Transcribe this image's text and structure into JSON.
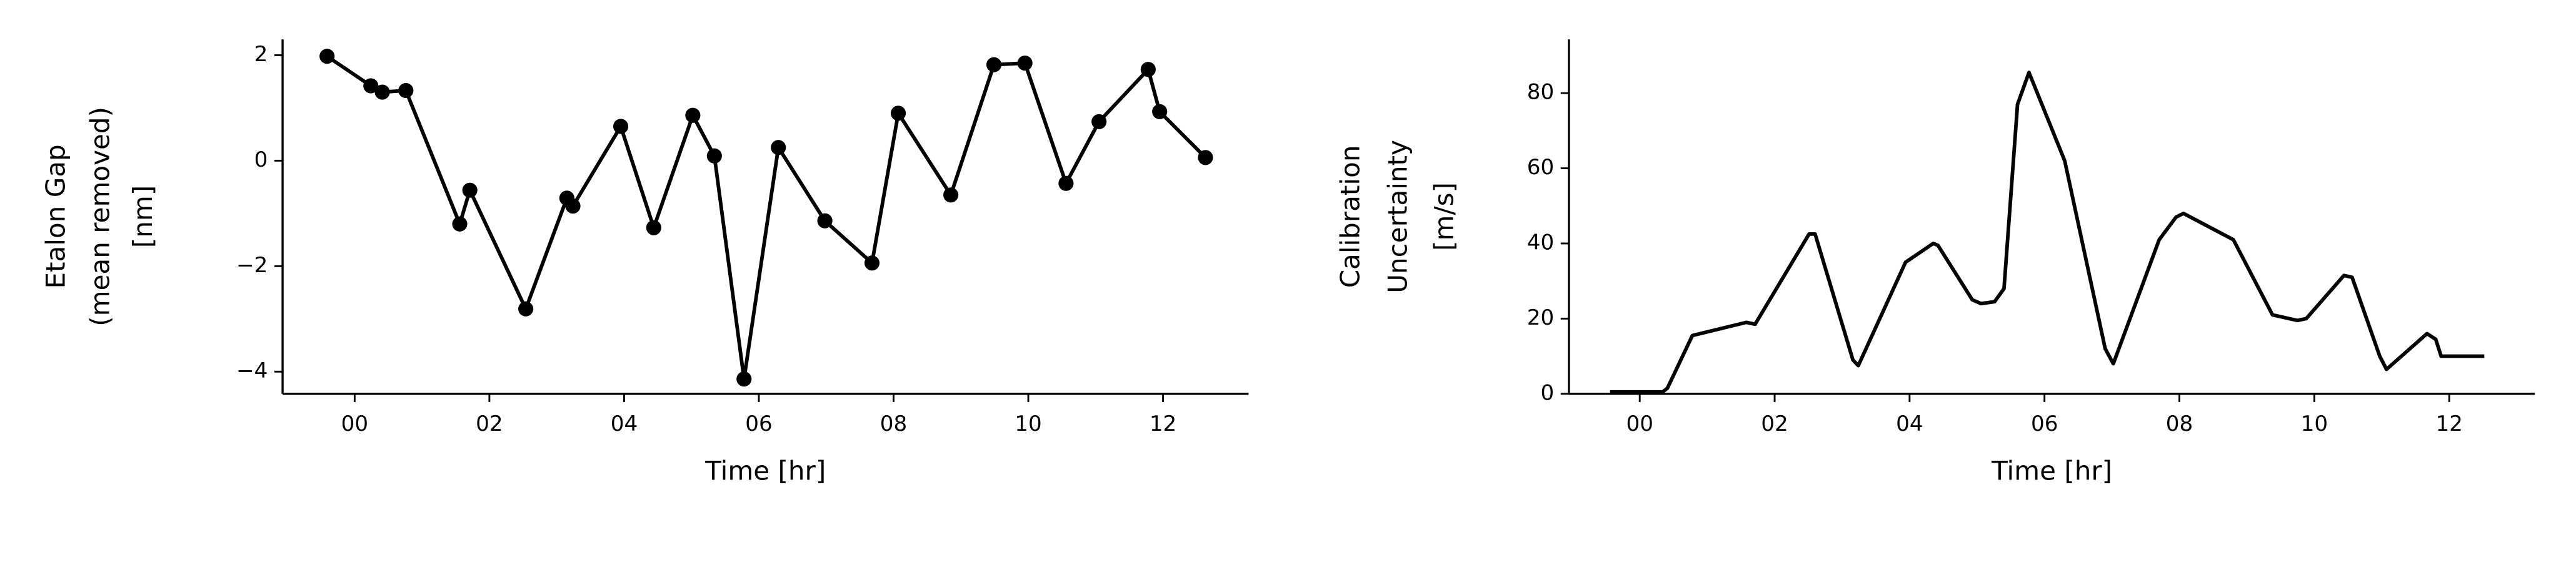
{
  "chart_data": [
    {
      "type": "line",
      "markers": true,
      "color": "#000000",
      "xlabel": "Time [hr]",
      "ylabel": [
        "Etalon Gap",
        "(mean removed)",
        "[nm]"
      ],
      "xlim": [
        -1.07,
        13.27
      ],
      "ylim": [
        -4.42,
        2.3
      ],
      "xticks": [
        {
          "value": 0,
          "label": "00"
        },
        {
          "value": 2,
          "label": "02"
        },
        {
          "value": 4,
          "label": "04"
        },
        {
          "value": 6,
          "label": "06"
        },
        {
          "value": 8,
          "label": "08"
        },
        {
          "value": 10,
          "label": "10"
        },
        {
          "value": 12,
          "label": "12"
        }
      ],
      "yticks": [
        {
          "value": -4,
          "label": "−4"
        },
        {
          "value": -2,
          "label": "−2"
        },
        0,
        2
      ],
      "x": [
        -0.41,
        0.24,
        0.41,
        0.76,
        1.56,
        1.71,
        2.54,
        3.15,
        3.24,
        3.95,
        4.44,
        5.02,
        5.34,
        5.78,
        6.29,
        6.98,
        7.68,
        8.07,
        8.85,
        9.49,
        9.95,
        10.56,
        11.05,
        11.78,
        11.95,
        12.63
      ],
      "values": [
        1.98,
        1.42,
        1.3,
        1.33,
        -1.2,
        -0.56,
        -2.81,
        -0.71,
        -0.86,
        0.65,
        -1.27,
        0.86,
        0.09,
        -4.14,
        0.25,
        -1.14,
        -1.94,
        0.9,
        -0.65,
        1.82,
        1.85,
        -0.43,
        0.74,
        1.73,
        0.93,
        0.06
      ]
    },
    {
      "type": "line",
      "markers": false,
      "color": "#000000",
      "xlabel": "Time [hr]",
      "ylabel": [
        "Calibration",
        "Uncertainty",
        "[m/s]"
      ],
      "xlim": [
        -1.05,
        13.27
      ],
      "ylim": [
        0,
        94.3
      ],
      "xticks": [
        {
          "value": 0,
          "label": "00"
        },
        {
          "value": 2,
          "label": "02"
        },
        {
          "value": 4,
          "label": "04"
        },
        {
          "value": 6,
          "label": "06"
        },
        {
          "value": 8,
          "label": "08"
        },
        {
          "value": 10,
          "label": "10"
        },
        {
          "value": 12,
          "label": "12"
        }
      ],
      "yticks": [
        0,
        20,
        40,
        60,
        80
      ],
      "x": [
        -0.44,
        0.34,
        0.41,
        0.78,
        1.58,
        1.71,
        2.51,
        2.6,
        3.16,
        3.24,
        3.94,
        4.35,
        4.42,
        4.93,
        5.06,
        5.26,
        5.4,
        5.6,
        5.77,
        6.3,
        6.9,
        7.02,
        7.7,
        7.95,
        8.06,
        8.8,
        9.38,
        9.75,
        9.88,
        10.44,
        10.56,
        10.97,
        11.07,
        11.67,
        11.8,
        11.88,
        12.52
      ],
      "values": [
        0.5,
        0.5,
        1.5,
        15.5,
        19,
        18.5,
        42.5,
        42.5,
        9,
        7.5,
        35,
        40,
        39.5,
        25,
        24,
        24.5,
        28,
        77,
        85.5,
        62,
        12,
        8,
        41,
        47,
        48,
        41,
        21,
        19.5,
        20,
        31.5,
        31,
        10,
        6.5,
        16,
        14.5,
        10,
        10
      ]
    }
  ]
}
